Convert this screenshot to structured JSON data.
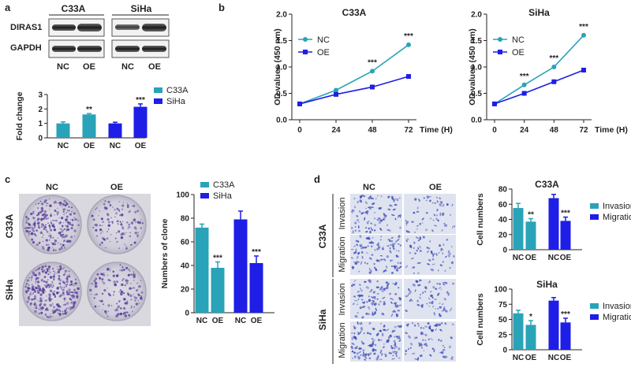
{
  "panels": {
    "a": {
      "letter": "a",
      "blot": {
        "col_labels": [
          "C33A",
          "SiHa"
        ],
        "row_labels": [
          "DIRAS1",
          "GAPDH"
        ],
        "lane_labels": [
          "NC",
          "OE",
          "NC",
          "OE"
        ]
      }
    },
    "b": {
      "letter": "b"
    },
    "c": {
      "letter": "c",
      "plate_cols": [
        "NC",
        "OE"
      ],
      "plate_rows": [
        "C33A",
        "SiHa"
      ]
    },
    "d": {
      "letter": "d",
      "img_cols": [
        "NC",
        "OE"
      ],
      "cell_lines": [
        "C33A",
        "SiHa"
      ],
      "assays": [
        "Invasion",
        "Migration"
      ]
    }
  },
  "colors": {
    "teal": "#29A3B8",
    "blue": "#1E1EE6",
    "error": "#29A3B8"
  },
  "chart_data": [
    {
      "id": "a-fold-change",
      "type": "bar",
      "ylabel": "Fold change",
      "ylim": [
        0,
        3
      ],
      "yticks": [
        "0",
        "1",
        "2",
        "3"
      ],
      "legend": [
        "C33A",
        "SiHa"
      ],
      "groups": [
        {
          "name": "C33A",
          "categories": [
            "NC",
            "OE"
          ],
          "values": [
            1.0,
            1.62
          ],
          "errors": [
            0.1,
            0.06
          ],
          "stars": [
            "",
            "**"
          ]
        },
        {
          "name": "SiHa",
          "categories": [
            "NC",
            "OE"
          ],
          "values": [
            1.0,
            2.15
          ],
          "errors": [
            0.08,
            0.2
          ],
          "stars": [
            "",
            "***"
          ]
        }
      ]
    },
    {
      "id": "b-c33a",
      "type": "line",
      "title": "C33A",
      "xlabel": "Time (H)",
      "ylabel": "OD values (450 nm)",
      "x": [
        0,
        24,
        48,
        72
      ],
      "xticks": [
        "0",
        "24",
        "48",
        "72"
      ],
      "ylim": [
        0,
        2.0
      ],
      "yticks": [
        "0.0",
        "0.5",
        "1.0",
        "1.5",
        "2.0"
      ],
      "series": [
        {
          "name": "NC",
          "values": [
            0.3,
            0.56,
            0.92,
            1.42
          ]
        },
        {
          "name": "OE",
          "values": [
            0.3,
            0.48,
            0.62,
            0.82
          ]
        }
      ],
      "stars": [
        "",
        "",
        "***",
        "***"
      ]
    },
    {
      "id": "b-siha",
      "type": "line",
      "title": "SiHa",
      "xlabel": "Time (H)",
      "ylabel": "OD values (450 nm)",
      "x": [
        0,
        24,
        48,
        72
      ],
      "xticks": [
        "0",
        "24",
        "48",
        "72"
      ],
      "ylim": [
        0,
        2.0
      ],
      "yticks": [
        "0.0",
        "0.5",
        "1.0",
        "1.5",
        "2.0"
      ],
      "series": [
        {
          "name": "NC",
          "values": [
            0.3,
            0.66,
            1.0,
            1.6
          ]
        },
        {
          "name": "OE",
          "values": [
            0.3,
            0.5,
            0.72,
            0.94
          ]
        }
      ],
      "stars": [
        "",
        "***",
        "***",
        "***"
      ]
    },
    {
      "id": "c-clone",
      "type": "bar",
      "ylabel": "Numbers of clone",
      "ylim": [
        0,
        100
      ],
      "yticks": [
        "0",
        "20",
        "40",
        "60",
        "80",
        "100"
      ],
      "legend": [
        "C33A",
        "SiHa"
      ],
      "groups": [
        {
          "name": "C33A",
          "categories": [
            "NC",
            "OE"
          ],
          "values": [
            72,
            38
          ],
          "errors": [
            3,
            5
          ],
          "stars": [
            "",
            "***"
          ]
        },
        {
          "name": "SiHa",
          "categories": [
            "NC",
            "OE"
          ],
          "values": [
            79,
            42
          ],
          "errors": [
            7,
            6
          ],
          "stars": [
            "",
            "***"
          ]
        }
      ]
    },
    {
      "id": "d-c33a",
      "type": "bar",
      "title": "C33A",
      "ylabel": "Cell numbers",
      "ylim": [
        0,
        80
      ],
      "yticks": [
        "0",
        "20",
        "40",
        "60",
        "80"
      ],
      "legend": [
        "Invasion",
        "Migration"
      ],
      "groups": [
        {
          "name": "Invasion",
          "categories": [
            "NC",
            "OE"
          ],
          "values": [
            55,
            37
          ],
          "errors": [
            6,
            4
          ],
          "stars": [
            "",
            "**"
          ]
        },
        {
          "name": "Migration",
          "categories": [
            "NC",
            "OE"
          ],
          "values": [
            68,
            38
          ],
          "errors": [
            5,
            5
          ],
          "stars": [
            "",
            "***"
          ]
        }
      ]
    },
    {
      "id": "d-siha",
      "type": "bar",
      "title": "SiHa",
      "ylabel": "Cell numbers",
      "ylim": [
        0,
        100
      ],
      "yticks": [
        "0",
        "25",
        "50",
        "75",
        "100"
      ],
      "legend": [
        "Invasion",
        "Migration"
      ],
      "groups": [
        {
          "name": "Invasion",
          "categories": [
            "NC",
            "OE"
          ],
          "values": [
            60,
            41
          ],
          "errors": [
            5,
            7
          ],
          "stars": [
            "",
            "*"
          ]
        },
        {
          "name": "Migration",
          "categories": [
            "NC",
            "OE"
          ],
          "values": [
            81,
            45
          ],
          "errors": [
            5,
            7
          ],
          "stars": [
            "",
            "***"
          ]
        }
      ]
    }
  ]
}
